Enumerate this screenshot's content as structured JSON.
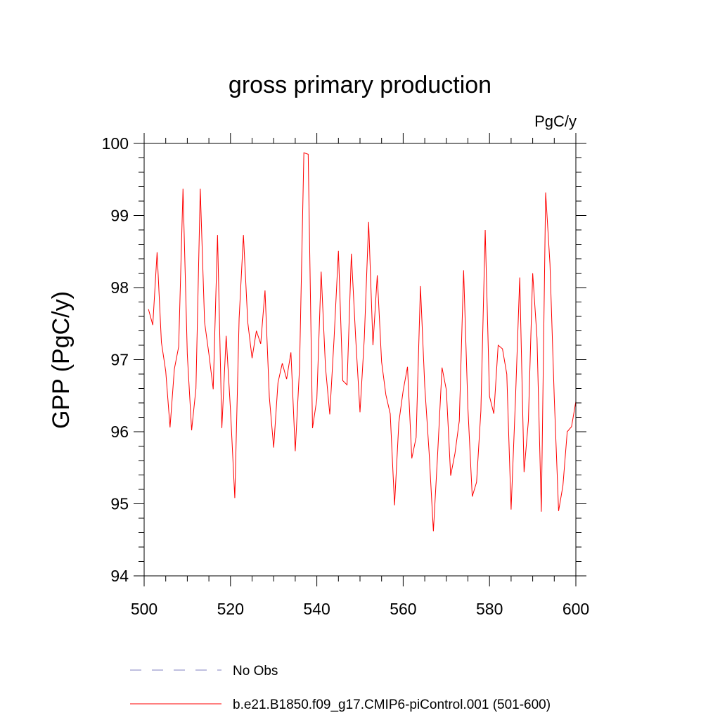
{
  "chart_data": {
    "type": "line",
    "title": "gross primary production",
    "units_label": "PgC/y",
    "xlabel": "",
    "ylabel": "GPP  (PgC/y)",
    "xlim": [
      500,
      600
    ],
    "ylim": [
      94,
      100
    ],
    "x_ticks": [
      500,
      520,
      540,
      560,
      580,
      600
    ],
    "x_tick_labels": [
      "500",
      "520",
      "540",
      "560",
      "580",
      "600"
    ],
    "x_minor_step": 5,
    "y_ticks": [
      94,
      95,
      96,
      97,
      98,
      99,
      100
    ],
    "y_tick_labels": [
      "94",
      "95",
      "96",
      "97",
      "98",
      "99",
      "100"
    ],
    "y_minor_step": 0.2,
    "grid": false,
    "legend_position": "bottom",
    "colors": {
      "model_line": "#ff0000",
      "obs_line": "#8080c0",
      "axis": "#000000"
    },
    "legend": [
      {
        "label": "No Obs",
        "style": "dashed",
        "color": "#8080c0"
      },
      {
        "label": "b.e21.B1850.f09_g17.CMIP6-piControl.001 (501-600)",
        "style": "solid",
        "color": "#ff0000"
      }
    ],
    "series": [
      {
        "name": "b.e21.B1850.f09_g17.CMIP6-piControl.001 (501-600)",
        "x": [
          501,
          502,
          503,
          504,
          505,
          506,
          507,
          508,
          509,
          510,
          511,
          512,
          513,
          514,
          515,
          516,
          517,
          518,
          519,
          520,
          521,
          522,
          523,
          524,
          525,
          526,
          527,
          528,
          529,
          530,
          531,
          532,
          533,
          534,
          535,
          536,
          537,
          538,
          539,
          540,
          541,
          542,
          543,
          544,
          545,
          546,
          547,
          548,
          549,
          550,
          551,
          552,
          553,
          554,
          555,
          556,
          557,
          558,
          559,
          560,
          561,
          562,
          563,
          564,
          565,
          566,
          567,
          568,
          569,
          570,
          571,
          572,
          573,
          574,
          575,
          576,
          577,
          578,
          579,
          580,
          581,
          582,
          583,
          584,
          585,
          586,
          587,
          588,
          589,
          590,
          591,
          592,
          593,
          594,
          595,
          596,
          597,
          598,
          599,
          600
        ],
        "values": [
          97.7,
          97.48,
          98.49,
          97.24,
          96.84,
          96.06,
          96.87,
          97.18,
          99.37,
          97.07,
          96.02,
          96.6,
          99.37,
          97.52,
          97.08,
          96.59,
          98.73,
          96.05,
          97.33,
          96.3,
          95.08,
          97.57,
          98.73,
          97.52,
          97.02,
          97.4,
          97.22,
          97.96,
          96.48,
          95.78,
          96.68,
          96.95,
          96.73,
          97.1,
          95.73,
          96.89,
          99.87,
          99.85,
          96.05,
          96.45,
          98.22,
          96.9,
          96.24,
          97.3,
          98.51,
          96.71,
          96.65,
          98.47,
          97.3,
          96.27,
          97.3,
          98.91,
          97.2,
          98.17,
          96.97,
          96.51,
          96.25,
          94.98,
          96.13,
          96.57,
          96.9,
          95.63,
          95.92,
          98.02,
          96.63,
          95.72,
          94.62,
          95.71,
          96.89,
          96.58,
          95.39,
          95.7,
          96.15,
          98.24,
          96.32,
          95.1,
          95.3,
          96.29,
          98.8,
          96.49,
          96.25,
          97.2,
          97.15,
          96.8,
          94.92,
          96.43,
          98.14,
          95.44,
          96.15,
          98.2,
          97.3,
          94.89,
          99.32,
          98.33,
          96.47,
          94.9,
          95.25,
          96.0,
          96.07,
          96.42
        ]
      }
    ]
  }
}
